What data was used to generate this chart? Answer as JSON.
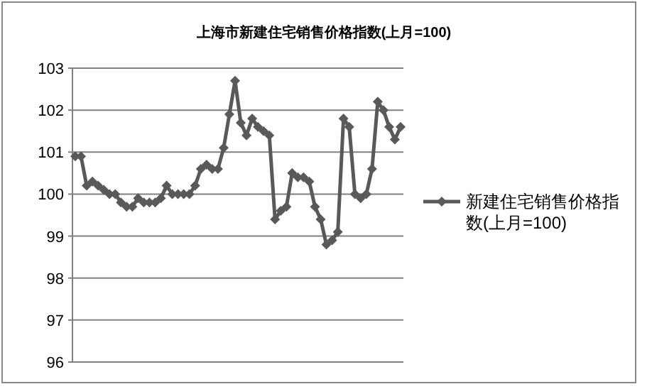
{
  "chart_data": {
    "type": "line",
    "title": "上海市新建住宅销售价格指数(上月=100)",
    "categories": [
      null,
      null,
      null,
      null,
      null,
      null,
      null,
      null,
      null,
      null,
      null,
      null,
      null,
      null,
      null,
      null,
      null,
      null,
      null,
      null,
      null,
      null,
      null,
      null,
      null,
      null,
      null,
      null,
      null,
      null,
      null,
      null,
      null,
      null,
      null,
      null,
      null,
      null,
      null,
      null,
      null,
      null,
      null,
      null,
      null,
      null,
      null,
      null,
      null,
      null,
      null,
      null,
      null,
      null,
      null,
      null,
      null,
      null
    ],
    "series": [
      {
        "name": "新建住宅销售价格指数(上月=100)",
        "color": "#595959",
        "values": [
          100.9,
          100.9,
          100.2,
          100.3,
          100.2,
          100.1,
          100.0,
          100.0,
          99.8,
          99.7,
          99.7,
          99.9,
          99.8,
          99.8,
          99.8,
          99.9,
          100.2,
          100.0,
          100.0,
          100.0,
          100.0,
          100.2,
          100.6,
          100.7,
          100.6,
          100.6,
          101.1,
          101.9,
          102.7,
          101.7,
          101.4,
          101.8,
          101.6,
          101.5,
          101.4,
          99.4,
          99.6,
          99.7,
          100.5,
          100.4,
          100.4,
          100.3,
          99.7,
          99.4,
          98.8,
          98.9,
          99.1,
          101.8,
          101.6,
          100.0,
          99.9,
          100.0,
          100.6,
          102.2,
          102.0,
          101.6,
          101.3,
          101.6
        ]
      }
    ],
    "ylim": [
      96,
      103
    ],
    "yticks": [
      96,
      97,
      98,
      99,
      100,
      101,
      102,
      103
    ],
    "grid": "y",
    "legend": "right",
    "marker": "diamond",
    "line_style": "solid"
  }
}
